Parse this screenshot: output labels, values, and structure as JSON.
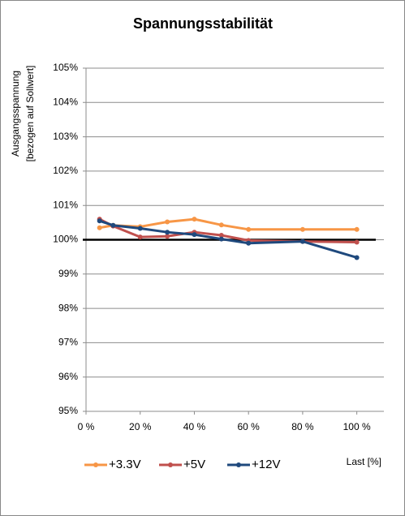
{
  "chart_data": {
    "type": "line",
    "title": "Spannungsstabilität",
    "y_label": [
      "Ausgangsspannung",
      "[bezogen auf Sollwert]"
    ],
    "x_label": "Last [%]",
    "x": [
      5,
      10,
      20,
      30,
      40,
      50,
      60,
      80,
      100
    ],
    "series": [
      {
        "name": "+3.3V",
        "color": "#f79646",
        "values": [
          100.35,
          100.42,
          100.38,
          100.52,
          100.6,
          100.43,
          100.3,
          100.3,
          100.3
        ]
      },
      {
        "name": "+5V",
        "color": "#c0504d",
        "values": [
          100.6,
          100.4,
          100.08,
          100.1,
          100.22,
          100.13,
          99.98,
          99.95,
          99.93
        ]
      },
      {
        "name": "+12V",
        "color": "#1f497d",
        "values": [
          100.55,
          100.42,
          100.33,
          100.22,
          100.15,
          100.02,
          99.9,
          99.95,
          99.48
        ]
      }
    ],
    "reference_line": 100,
    "xlim": [
      0,
      110
    ],
    "xticks": [
      {
        "value": 0,
        "label": "0 %"
      },
      {
        "value": 20,
        "label": "20 %"
      },
      {
        "value": 40,
        "label": "40 %"
      },
      {
        "value": 60,
        "label": "60 %"
      },
      {
        "value": 80,
        "label": "80 %"
      },
      {
        "value": 100,
        "label": "100 %"
      }
    ],
    "ylim": [
      95,
      105
    ],
    "yticks": [
      {
        "value": 95,
        "label": "95%"
      },
      {
        "value": 96,
        "label": "96%"
      },
      {
        "value": 97,
        "label": "97%"
      },
      {
        "value": 98,
        "label": "98%"
      },
      {
        "value": 99,
        "label": "99%"
      },
      {
        "value": 100,
        "label": "100%"
      },
      {
        "value": 101,
        "label": "101%"
      },
      {
        "value": 102,
        "label": "102%"
      },
      {
        "value": 103,
        "label": "103%"
      },
      {
        "value": 104,
        "label": "104%"
      },
      {
        "value": 105,
        "label": "105%"
      }
    ],
    "grid": true,
    "legend": "bottom"
  }
}
